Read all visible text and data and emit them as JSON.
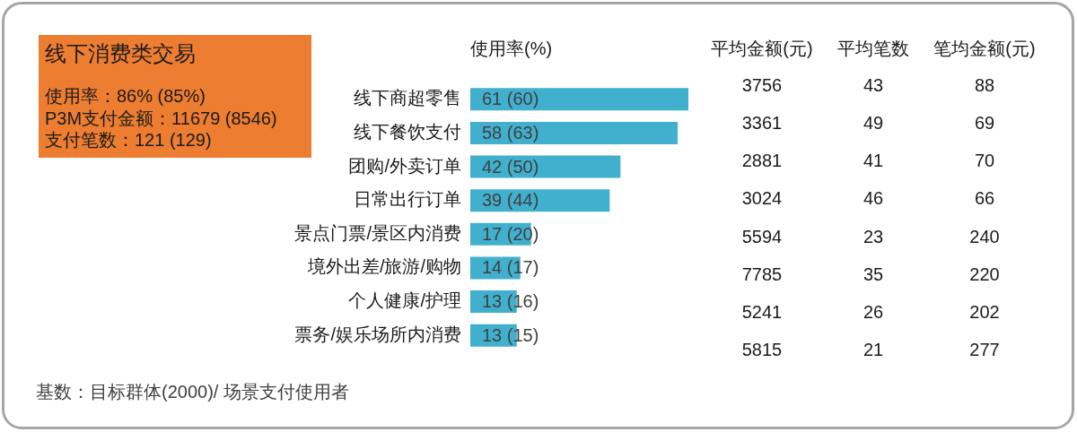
{
  "chart_data": [
    {
      "type": "other",
      "title": "线下消费类交易",
      "annotations": [
        "使用率：86% (85%)",
        "P3M支付金额：11679 (8546)",
        "支付笔数：121 (129)"
      ]
    },
    {
      "type": "bar",
      "orientation": "horizontal",
      "title": "使用率(%)",
      "categories": [
        "线下商超零售",
        "线下餐饮支付",
        "团购/外卖订单",
        "日常出行订单",
        "景点门票/景区内消费",
        "境外出差/旅游/购物",
        "个人健康/护理",
        "票务/娱乐场所内消费"
      ],
      "values": [
        61,
        58,
        42,
        39,
        17,
        14,
        13,
        13
      ],
      "value_labels": [
        "61 (60)",
        "58 (63)",
        "42 (50)",
        "39 (44)",
        "17 (20)",
        "14 (17)",
        "13 (16)",
        "13 (15)"
      ],
      "color": "#41b0ce",
      "tick_labels": "y",
      "annotations": [
        "基数：目标群体(2000)/ 场景支付使用者"
      ]
    },
    {
      "type": "heatmap",
      "categories": [
        "平均金额(元)",
        "平均笔数",
        "笔均金额(元)"
      ],
      "y_categories": [
        null,
        null,
        null,
        null,
        null,
        null,
        null,
        null
      ],
      "cells": [
        [
          3756,
          43,
          88
        ],
        [
          3361,
          49,
          69
        ],
        [
          2881,
          41,
          70
        ],
        [
          3024,
          46,
          66
        ],
        [
          5594,
          23,
          240
        ],
        [
          7785,
          35,
          220
        ],
        [
          5241,
          26,
          202
        ],
        [
          5815,
          21,
          277
        ]
      ],
      "data_labels": true
    }
  ]
}
